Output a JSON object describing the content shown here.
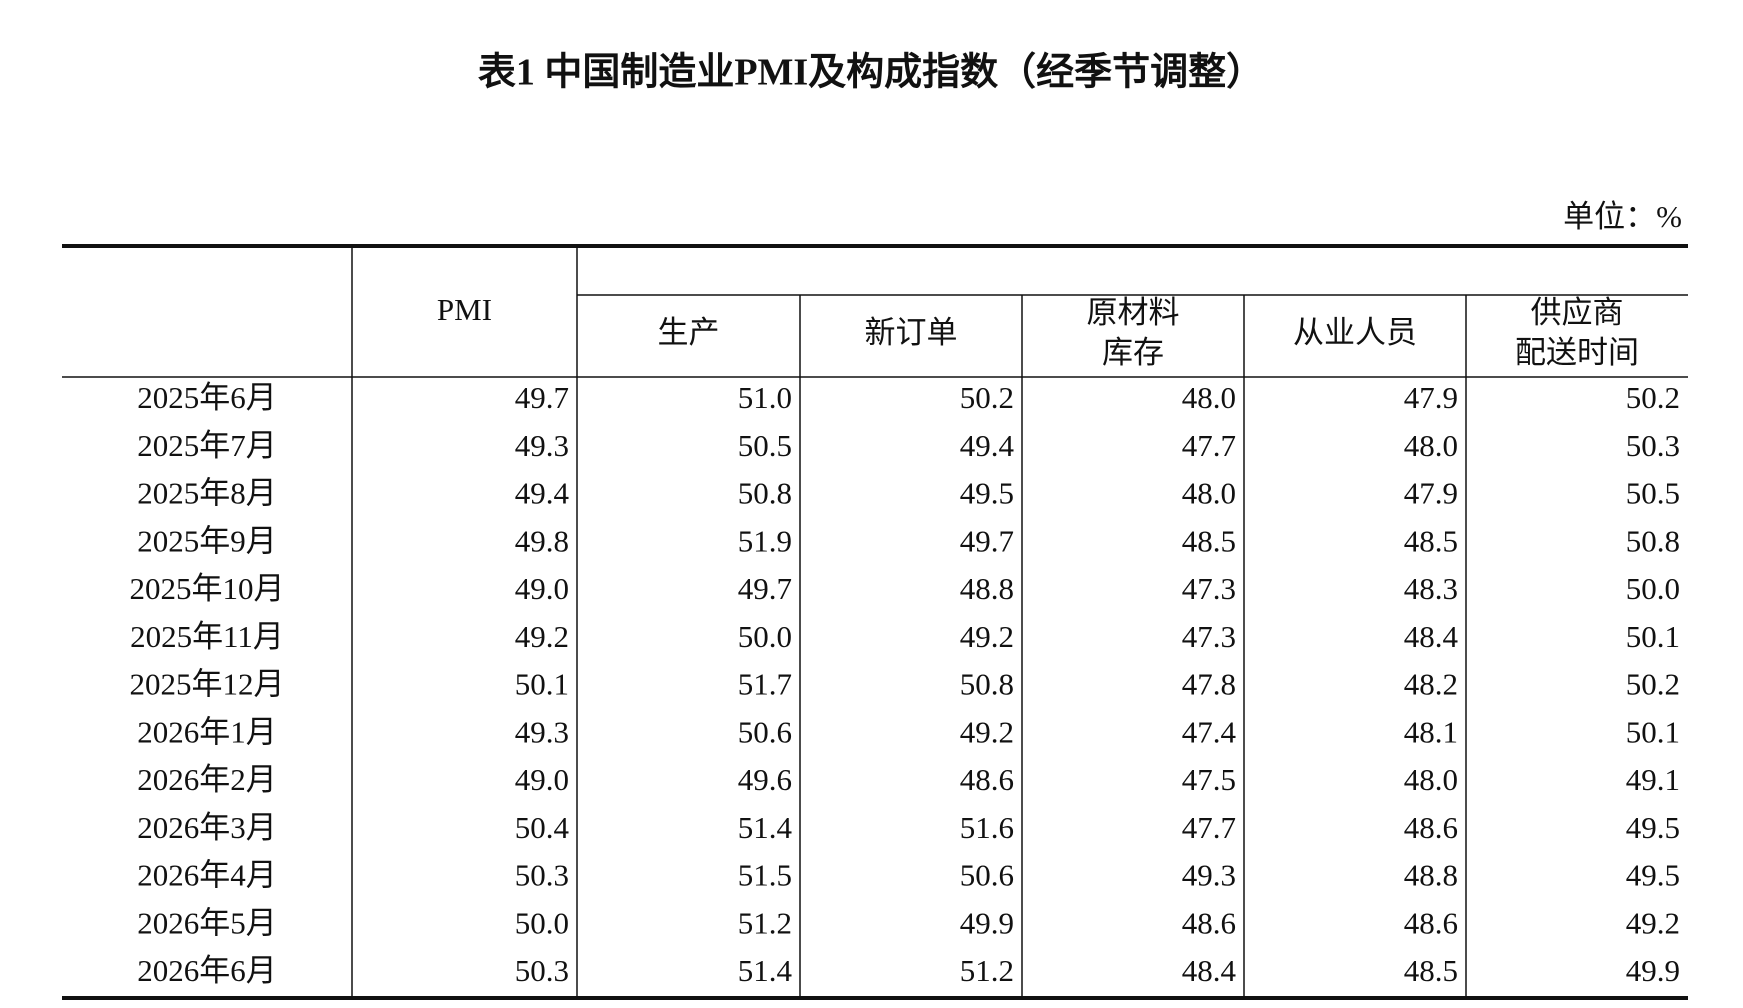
{
  "header": {
    "title": "表1 中国制造业PMI及构成指数（经季节调整）",
    "unit": "单位：%"
  },
  "table": {
    "columns": [
      [
        "PMI"
      ],
      [
        "生产"
      ],
      [
        "新订单"
      ],
      [
        "原材料",
        "库存"
      ],
      [
        "从业人员"
      ],
      [
        "供应商",
        "配送时间"
      ]
    ],
    "rows": [
      [
        "2025年6月",
        "49.7",
        "51.0",
        "50.2",
        "48.0",
        "47.9",
        "50.2"
      ],
      [
        "2025年7月",
        "49.3",
        "50.5",
        "49.4",
        "47.7",
        "48.0",
        "50.3"
      ],
      [
        "2025年8月",
        "49.4",
        "50.8",
        "49.5",
        "48.0",
        "47.9",
        "50.5"
      ],
      [
        "2025年9月",
        "49.8",
        "51.9",
        "49.7",
        "48.5",
        "48.5",
        "50.8"
      ],
      [
        "2025年10月",
        "49.0",
        "49.7",
        "48.8",
        "47.3",
        "48.3",
        "50.0"
      ],
      [
        "2025年11月",
        "49.2",
        "50.0",
        "49.2",
        "47.3",
        "48.4",
        "50.1"
      ],
      [
        "2025年12月",
        "50.1",
        "51.7",
        "50.8",
        "47.8",
        "48.2",
        "50.2"
      ],
      [
        "2026年1月",
        "49.3",
        "50.6",
        "49.2",
        "47.4",
        "48.1",
        "50.1"
      ],
      [
        "2026年2月",
        "49.0",
        "49.6",
        "48.6",
        "47.5",
        "48.0",
        "49.1"
      ],
      [
        "2026年3月",
        "50.4",
        "51.4",
        "51.6",
        "47.7",
        "48.6",
        "49.5"
      ],
      [
        "2026年4月",
        "50.3",
        "51.5",
        "50.6",
        "49.3",
        "48.8",
        "49.5"
      ],
      [
        "2026年5月",
        "50.0",
        "51.2",
        "49.9",
        "48.6",
        "48.6",
        "49.2"
      ],
      [
        "2026年6月",
        "50.3",
        "51.4",
        "51.2",
        "48.4",
        "48.5",
        "49.9"
      ]
    ]
  }
}
